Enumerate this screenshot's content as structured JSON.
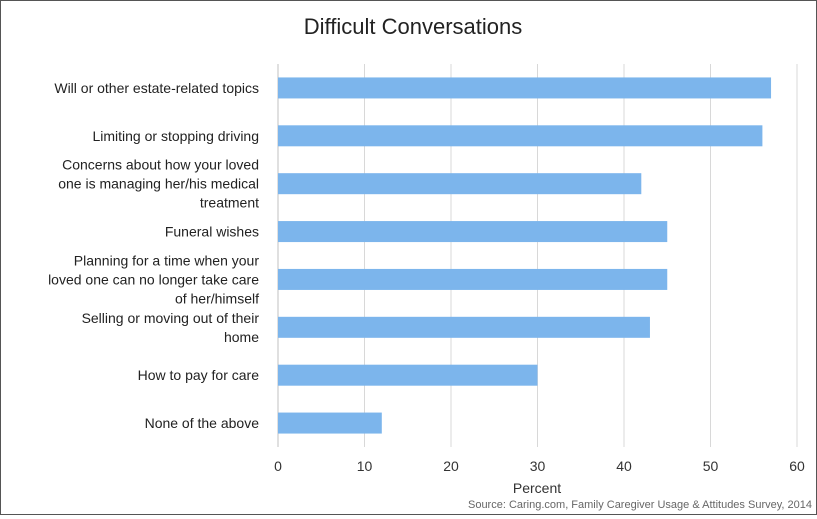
{
  "chart_data": {
    "type": "bar",
    "orientation": "horizontal",
    "title": "Difficult Conversations",
    "xlabel": "Percent",
    "ylabel": "",
    "xlim": [
      0,
      60
    ],
    "xticks": [
      0,
      10,
      20,
      30,
      40,
      50,
      60
    ],
    "grid": true,
    "bar_color": "#7cb5ec",
    "categories": [
      [
        "Will or other estate-related topics"
      ],
      [
        "Limiting or stopping driving"
      ],
      [
        "Concerns about how your loved",
        "one is managing her/his medical",
        "treatment"
      ],
      [
        "Funeral wishes"
      ],
      [
        "Planning for a time when your",
        "loved one can no longer take care",
        "of her/himself"
      ],
      [
        "Selling or moving out of their",
        "home"
      ],
      [
        "How to pay for care"
      ],
      [
        "None of the above"
      ]
    ],
    "values": [
      57,
      56,
      42,
      45,
      45,
      43,
      30,
      12
    ],
    "source": "Source: Caring.com, Family Caregiver Usage & Attitudes Survey, 2014"
  }
}
